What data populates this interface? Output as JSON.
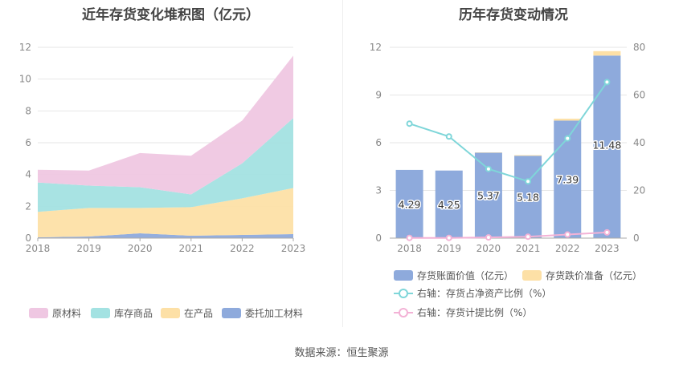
{
  "footer": {
    "source": "数据来源：恒生聚源"
  },
  "chart_data": [
    {
      "type": "area",
      "stacked": true,
      "title": "近年存货变化堆积图（亿元）",
      "categories": [
        "2018",
        "2019",
        "2020",
        "2021",
        "2022",
        "2023"
      ],
      "y_ticks": [
        "0",
        "2",
        "4",
        "6",
        "8",
        "10",
        "12"
      ],
      "ylim": [
        0,
        12
      ],
      "grid": true,
      "legend_position": "bottom",
      "series": [
        {
          "name": "委托加工材料",
          "color": "#8eaadc",
          "values": [
            0.05,
            0.1,
            0.3,
            0.15,
            0.2,
            0.25
          ]
        },
        {
          "name": "在产品",
          "color": "#fde0a6",
          "values": [
            1.6,
            1.8,
            1.6,
            1.8,
            2.3,
            2.9
          ]
        },
        {
          "name": "库存商品",
          "color": "#a3e2e2",
          "values": [
            1.85,
            1.4,
            1.3,
            0.8,
            2.2,
            4.4
          ]
        },
        {
          "name": "原材料",
          "color": "#efc7e2",
          "values": [
            0.8,
            0.95,
            2.15,
            2.43,
            2.69,
            3.93
          ]
        }
      ]
    },
    {
      "type": "bar+line",
      "title": "历年存货变动情况",
      "categories": [
        "2018",
        "2019",
        "2020",
        "2021",
        "2022",
        "2023"
      ],
      "y_left_ticks": [
        "0",
        "3",
        "6",
        "9",
        "12"
      ],
      "y_right_ticks": [
        "0",
        "20",
        "40",
        "60",
        "80"
      ],
      "ylim_left": [
        0,
        12
      ],
      "ylim_right": [
        0,
        80
      ],
      "grid": true,
      "legend_position": "bottom",
      "bars": [
        {
          "name": "存货账面价值（亿元）",
          "color": "#8eaadc",
          "values": [
            4.29,
            4.25,
            5.37,
            5.18,
            7.39,
            11.48
          ],
          "labels": [
            "4.29",
            "4.25",
            "5.37",
            "5.18",
            "7.39",
            "11.48"
          ]
        },
        {
          "name": "存货跌价准备（亿元）",
          "color": "#fde0a6",
          "values": [
            0.0,
            0.0,
            0.02,
            0.04,
            0.12,
            0.28
          ]
        }
      ],
      "lines": [
        {
          "name": "右轴：存货占净资产比例（%）",
          "color": "#7fd6d9",
          "axis": "right",
          "values": [
            48.0,
            42.6,
            29.0,
            23.8,
            41.8,
            65.4
          ]
        },
        {
          "name": "右轴：存货计提比例（%）",
          "color": "#f3b2d6",
          "axis": "right",
          "values": [
            0.1,
            0.1,
            0.3,
            0.6,
            1.5,
            2.4
          ]
        }
      ]
    }
  ]
}
